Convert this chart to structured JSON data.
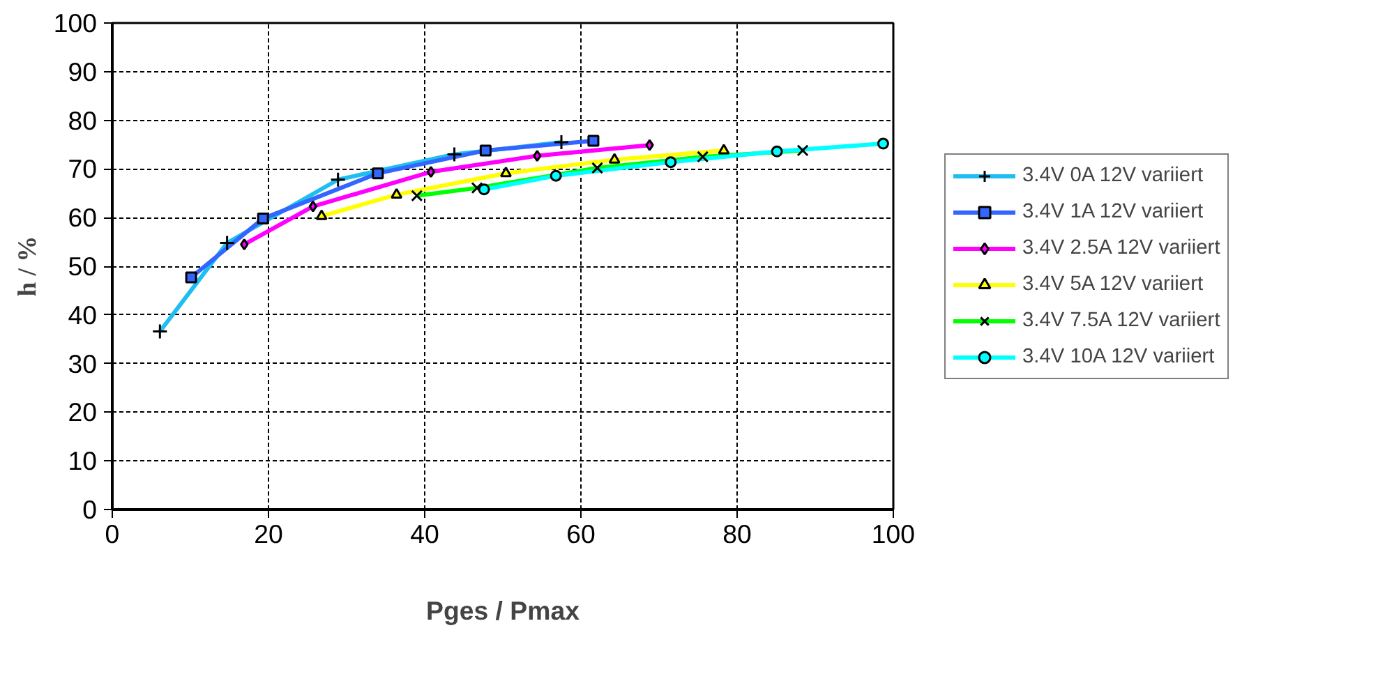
{
  "chart_data": {
    "type": "line",
    "xlabel": "Pges / Pmax",
    "ylabel": "h / %",
    "xlim": [
      0,
      100
    ],
    "ylim": [
      0,
      100
    ],
    "xticks": [
      0,
      20,
      40,
      60,
      80,
      100
    ],
    "yticks": [
      0,
      10,
      20,
      30,
      40,
      50,
      60,
      70,
      80,
      90,
      100
    ],
    "grid": true,
    "legend": "right",
    "line_style": "solid",
    "series": [
      {
        "name": "3.4V 0A 12V variiert",
        "color": "#1ebef0",
        "marker": "cross",
        "x": [
          6.1,
          14.7,
          28.9,
          43.8,
          57.5
        ],
        "values": [
          36.6,
          54.8,
          67.8,
          73.0,
          75.5
        ]
      },
      {
        "name": "3.4V 1A 12V variiert",
        "color": "#3366ff",
        "marker": "square",
        "x": [
          10.1,
          19.3,
          34.0,
          47.8,
          61.6
        ],
        "values": [
          47.7,
          59.8,
          69.1,
          73.8,
          75.8
        ]
      },
      {
        "name": "3.4V 2.5A 12V variiert",
        "color": "#ff00ff",
        "marker": "diamond",
        "x": [
          16.9,
          25.7,
          40.8,
          54.4,
          68.8
        ],
        "values": [
          54.5,
          62.3,
          69.4,
          72.7,
          74.9
        ]
      },
      {
        "name": "3.4V 5A 12V variiert",
        "color": "#ffff00",
        "marker": "triangle",
        "x": [
          26.8,
          36.4,
          50.4,
          64.3,
          78.3
        ],
        "values": [
          60.3,
          64.7,
          69.1,
          71.9,
          73.8
        ]
      },
      {
        "name": "3.4V 7.5A 12V variiert",
        "color": "#00ff00",
        "marker": "x",
        "x": [
          39.0,
          46.7,
          62.1,
          75.6,
          88.4
        ],
        "values": [
          64.5,
          66.1,
          70.2,
          72.5,
          73.8
        ]
      },
      {
        "name": "3.4V 10A 12V variiert",
        "color": "#00ffff",
        "marker": "circle",
        "x": [
          47.6,
          56.8,
          71.5,
          85.1,
          98.7
        ],
        "values": [
          65.8,
          68.6,
          71.4,
          73.6,
          75.2
        ]
      }
    ]
  }
}
